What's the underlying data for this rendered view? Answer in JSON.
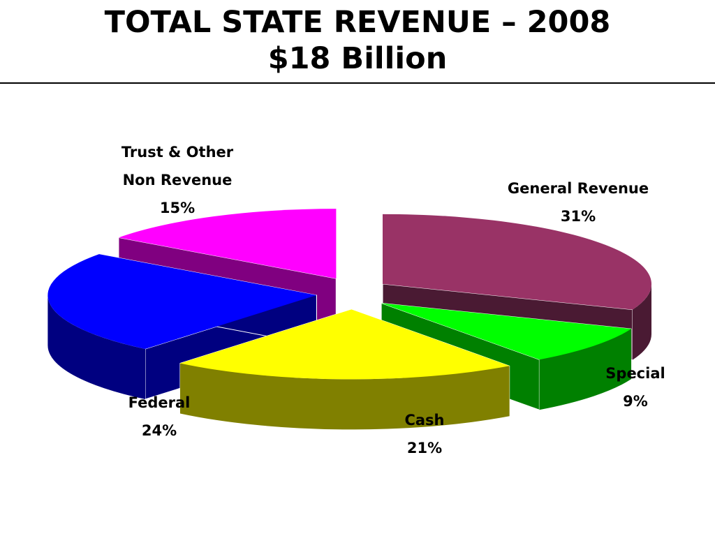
{
  "title": "TOTAL STATE REVENUE – 2008",
  "subtitle": "$18 Billion",
  "chart_data": {
    "type": "pie",
    "title": "TOTAL STATE REVENUE – 2008",
    "subtitle": "$18 Billion",
    "style": "3d-exploded",
    "slices": [
      {
        "label": "General Revenue",
        "value": 31,
        "display": "31%",
        "color": "#993366",
        "side_color": "#4a1a33"
      },
      {
        "label": "Special",
        "value": 9,
        "display": "9%",
        "color": "#00ff00",
        "side_color": "#008000"
      },
      {
        "label": "Cash",
        "value": 21,
        "display": "21%",
        "color": "#ffff00",
        "side_color": "#808000"
      },
      {
        "label": "Federal",
        "value": 24,
        "display": "24%",
        "color": "#0000ff",
        "side_color": "#000080"
      },
      {
        "label": "Trust & Other Non Revenue",
        "value": 15,
        "display": "15%",
        "color": "#ff00ff",
        "side_color": "#800080"
      }
    ],
    "label_lines": [
      [
        "General Revenue",
        "31%"
      ],
      [
        "Special",
        "9%"
      ],
      [
        "Cash",
        "21%"
      ],
      [
        "Federal",
        "24%"
      ],
      [
        "Trust & Other",
        "Non Revenue",
        "15%"
      ]
    ]
  }
}
